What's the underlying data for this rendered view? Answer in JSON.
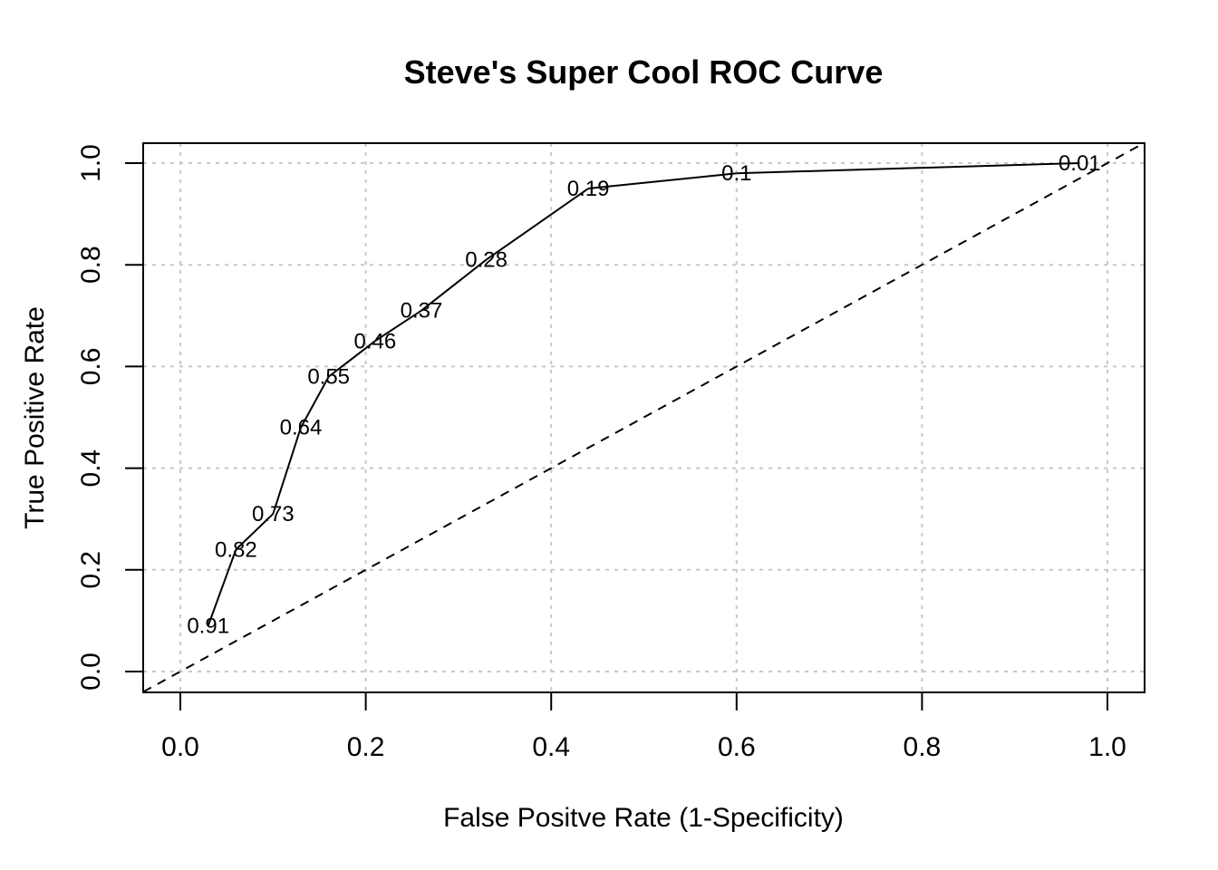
{
  "chart_data": {
    "type": "line",
    "title": "Steve's Super Cool ROC Curve",
    "xlabel": "False Positve Rate (1-Specificity)",
    "ylabel": "True Positive Rate",
    "xlim": [
      0,
      1
    ],
    "ylim": [
      0,
      1
    ],
    "xticks": [
      "0.0",
      "0.2",
      "0.4",
      "0.6",
      "0.8",
      "1.0"
    ],
    "yticks": [
      "0.0",
      "0.2",
      "0.4",
      "0.6",
      "0.8",
      "1.0"
    ],
    "grid": true,
    "series": [
      {
        "x": [
          0.03,
          0.06,
          0.1,
          0.13,
          0.16,
          0.21,
          0.26,
          0.33,
          0.44,
          0.6,
          0.97
        ],
        "y": [
          0.09,
          0.24,
          0.31,
          0.48,
          0.58,
          0.65,
          0.71,
          0.81,
          0.95,
          0.98,
          1.0
        ],
        "labels": [
          "0.91",
          "0.82",
          "0.73",
          "0.64",
          "0.55",
          "0.46",
          "0.37",
          "0.28",
          "0.19",
          "0.1",
          "0.01"
        ]
      }
    ],
    "reference_line": {
      "from": [
        0,
        0
      ],
      "to": [
        1,
        1
      ],
      "style": "dashed"
    }
  }
}
